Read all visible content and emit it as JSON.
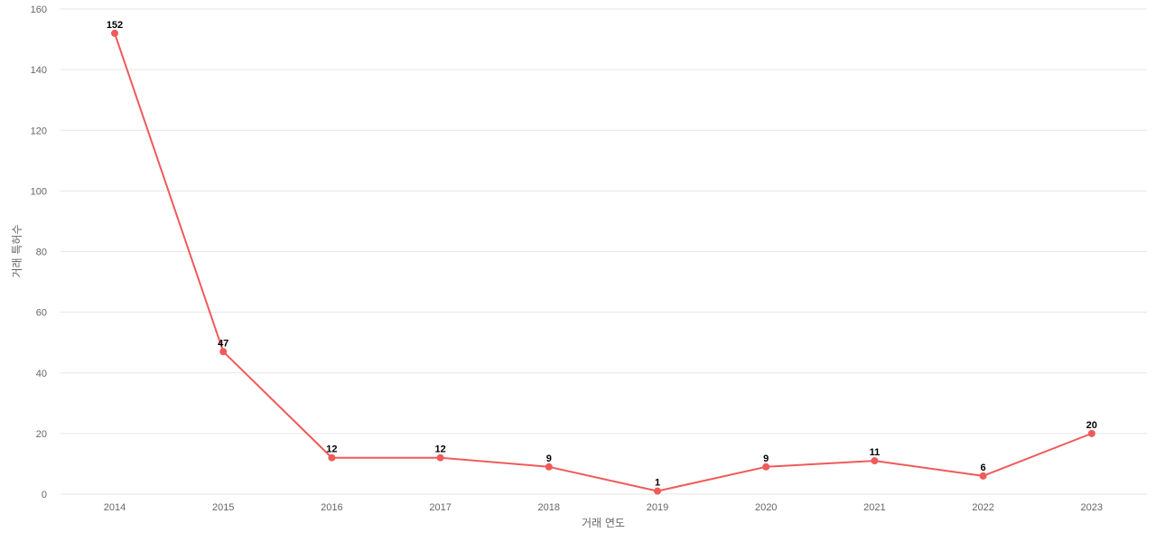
{
  "chart_data": {
    "type": "line",
    "title": "",
    "xlabel": "거래 연도",
    "ylabel": "거래 특허수",
    "categories": [
      "2014",
      "2015",
      "2016",
      "2017",
      "2018",
      "2019",
      "2020",
      "2021",
      "2022",
      "2023"
    ],
    "series": [
      {
        "values": [
          152,
          47,
          12,
          12,
          9,
          1,
          9,
          11,
          6,
          20
        ],
        "color": "#ef5a5a"
      }
    ],
    "ylim": [
      0,
      160
    ],
    "yticks": [
      "0",
      "20",
      "40",
      "60",
      "80",
      "100",
      "120",
      "140",
      "160"
    ],
    "data_labels": [
      "152",
      "47",
      "12",
      "12",
      "9",
      "1",
      "9",
      "11",
      "6",
      "20"
    ],
    "grid": true,
    "legend": "none"
  }
}
